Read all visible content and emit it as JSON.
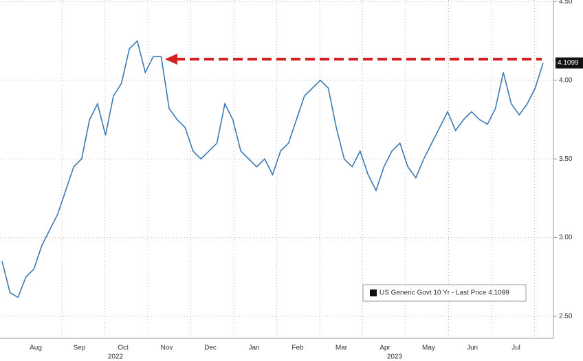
{
  "chart_data": {
    "type": "line",
    "month_labels": [
      "Aug",
      "Sep",
      "Oct",
      "Nov",
      "Dec",
      "Jan",
      "Feb",
      "Mar",
      "Apr",
      "May",
      "Jun",
      "Jul"
    ],
    "year_labels": [
      "2022",
      "2023"
    ],
    "series": [
      {
        "name": "US Generic Govt 10 Yr - Last Price 4.1099",
        "color": "#3a78b5",
        "values": [
          2.85,
          2.65,
          2.62,
          2.75,
          2.8,
          2.95,
          3.05,
          3.15,
          3.3,
          3.45,
          3.5,
          3.75,
          3.85,
          3.65,
          3.9,
          3.98,
          4.2,
          4.25,
          4.05,
          4.15,
          4.15,
          3.82,
          3.75,
          3.7,
          3.55,
          3.5,
          3.55,
          3.6,
          3.85,
          3.75,
          3.55,
          3.5,
          3.45,
          3.5,
          3.4,
          3.55,
          3.6,
          3.75,
          3.9,
          3.95,
          4.0,
          3.95,
          3.7,
          3.5,
          3.45,
          3.55,
          3.4,
          3.3,
          3.45,
          3.55,
          3.6,
          3.45,
          3.38,
          3.5,
          3.6,
          3.7,
          3.8,
          3.68,
          3.75,
          3.8,
          3.75,
          3.72,
          3.82,
          4.05,
          3.85,
          3.78,
          3.85,
          3.95,
          4.1099
        ]
      }
    ],
    "ylim": [
      2.36,
      4.51
    ],
    "yticks": [
      {
        "value": 2.5,
        "label": "2.50"
      },
      {
        "value": 3,
        "label": "3.00"
      },
      {
        "value": 3.5,
        "label": "3.50"
      },
      {
        "value": 4,
        "label": "4.00"
      },
      {
        "value": 4.5,
        "label": "4.50"
      }
    ],
    "grid": true
  }
}
